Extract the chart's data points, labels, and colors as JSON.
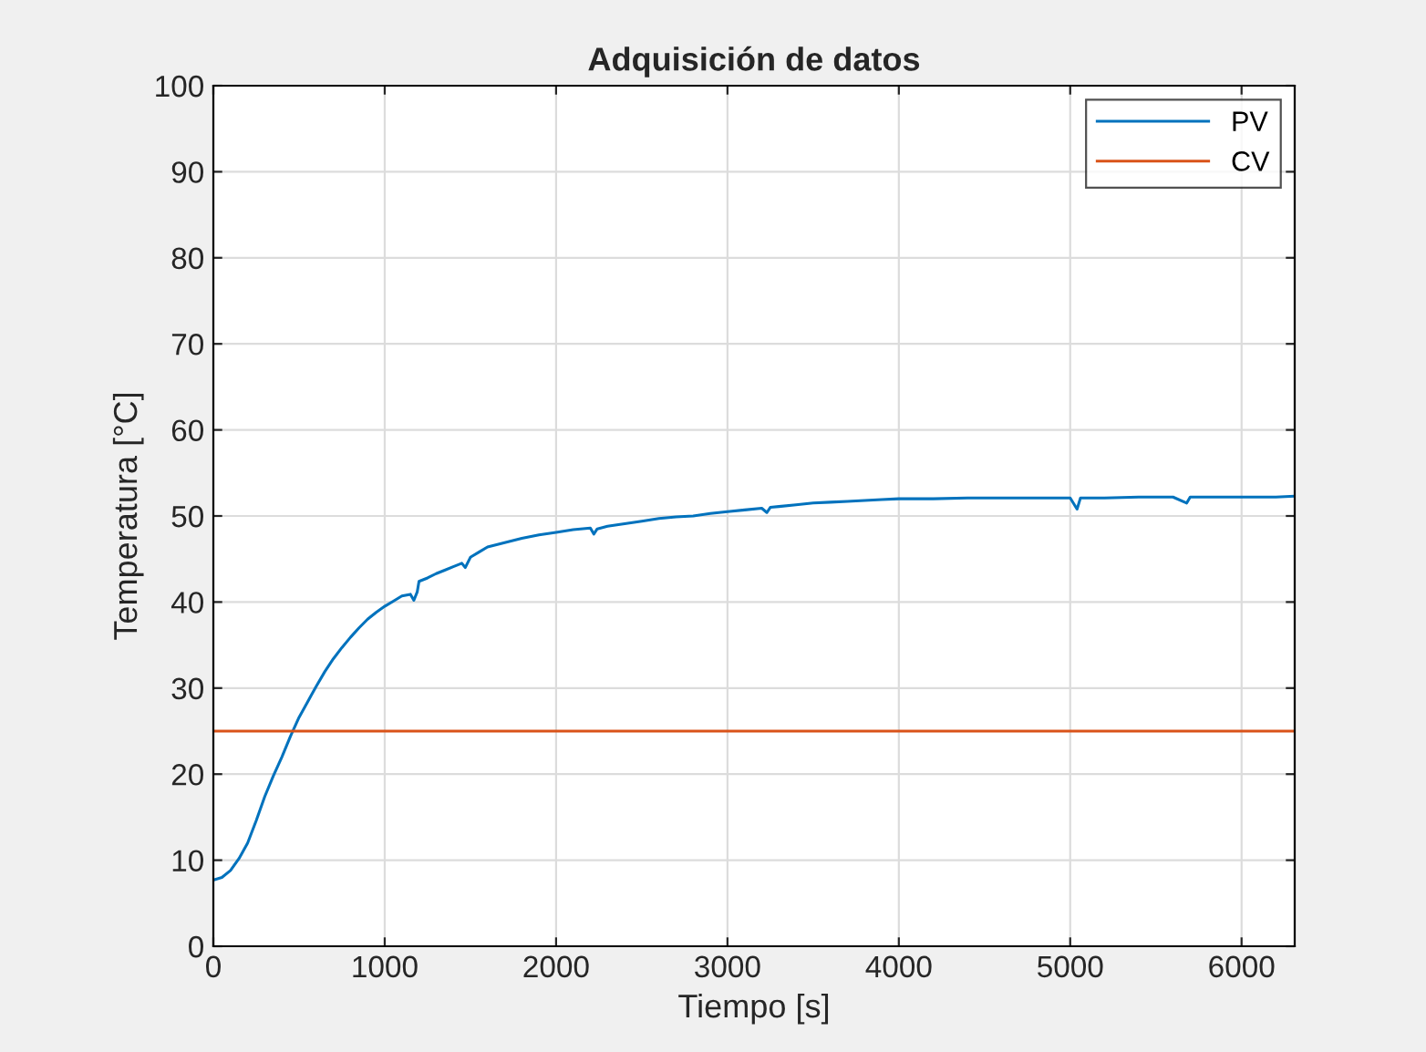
{
  "chart_data": {
    "type": "line",
    "title": "Adquisición de datos",
    "xlabel": "Tiempo [s]",
    "ylabel": "Temperatura [°C]",
    "xlim": [
      0,
      6310
    ],
    "ylim": [
      0,
      100
    ],
    "xticks": [
      0,
      1000,
      2000,
      3000,
      4000,
      5000,
      6000
    ],
    "yticks": [
      0,
      10,
      20,
      30,
      40,
      50,
      60,
      70,
      80,
      90,
      100
    ],
    "grid": true,
    "legend": "top right",
    "line_style": "solid",
    "marker": "none",
    "series": [
      {
        "name": "PV",
        "color": "#0072bd",
        "x": [
          0,
          50,
          100,
          150,
          200,
          250,
          300,
          350,
          400,
          450,
          500,
          550,
          600,
          650,
          700,
          750,
          800,
          850,
          900,
          950,
          1000,
          1050,
          1100,
          1150,
          1170,
          1190,
          1200,
          1250,
          1300,
          1350,
          1400,
          1450,
          1470,
          1500,
          1550,
          1600,
          1700,
          1800,
          1900,
          2000,
          2100,
          2200,
          2220,
          2240,
          2300,
          2400,
          2500,
          2600,
          2700,
          2800,
          2900,
          3000,
          3100,
          3200,
          3230,
          3250,
          3300,
          3400,
          3500,
          3600,
          3700,
          3800,
          3900,
          4000,
          4200,
          4400,
          4600,
          4800,
          5000,
          5040,
          5060,
          5200,
          5400,
          5600,
          5680,
          5700,
          5800,
          6000,
          6200,
          6310
        ],
        "values": [
          7.7,
          8.0,
          8.8,
          10.2,
          12,
          14.6,
          17.4,
          19.8,
          22,
          24.4,
          26.6,
          28.4,
          30.2,
          31.9,
          33.4,
          34.7,
          35.9,
          37,
          38,
          38.8,
          39.5,
          40.1,
          40.7,
          40.9,
          40.2,
          41.2,
          42.4,
          42.8,
          43.3,
          43.7,
          44.1,
          44.5,
          44,
          45.2,
          45.8,
          46.4,
          46.9,
          47.4,
          47.8,
          48.1,
          48.4,
          48.6,
          47.9,
          48.5,
          48.8,
          49.1,
          49.4,
          49.7,
          49.9,
          50,
          50.3,
          50.5,
          50.7,
          50.9,
          50.4,
          51,
          51.1,
          51.3,
          51.5,
          51.6,
          51.7,
          51.8,
          51.9,
          52,
          52,
          52.1,
          52.1,
          52.1,
          52.1,
          50.8,
          52.1,
          52.1,
          52.2,
          52.2,
          51.5,
          52.2,
          52.2,
          52.2,
          52.2,
          52.3
        ]
      },
      {
        "name": "CV",
        "color": "#d95319",
        "x": [
          0,
          6310
        ],
        "values": [
          25,
          25
        ]
      }
    ]
  }
}
